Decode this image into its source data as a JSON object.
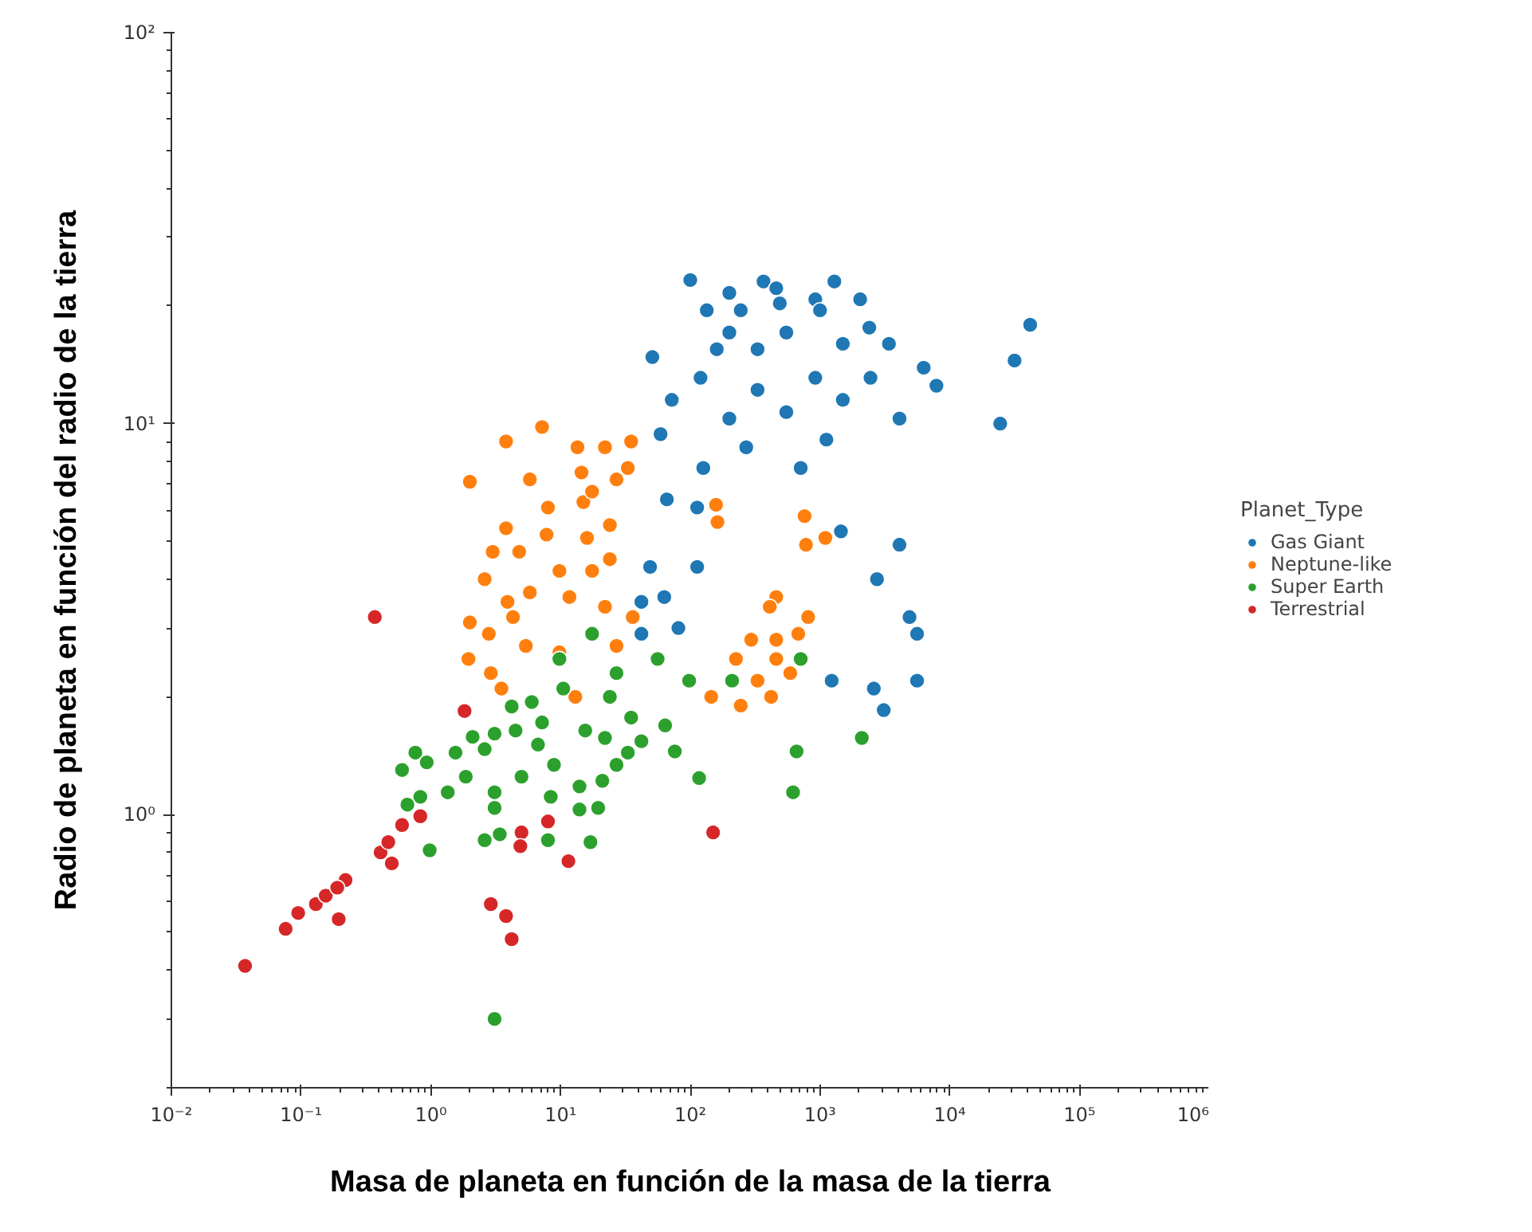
{
  "chart_data": {
    "type": "scatter",
    "xlabel": "Masa de planeta en función de la masa de la tierra",
    "ylabel": "Radio de planeta en función del radio de la tierra",
    "legend_title": "Planet_Type",
    "legend": "right",
    "marker": "circle",
    "log": "xy",
    "xlim": [
      0.01,
      1000000
    ],
    "ylim": [
      0.2,
      100
    ],
    "xticks": [
      {
        "value": 0.01,
        "label": "10⁻²"
      },
      {
        "value": 0.1,
        "label": "10⁻¹"
      },
      {
        "value": 1,
        "label": "10⁰"
      },
      {
        "value": 10,
        "label": "10¹"
      },
      {
        "value": 100,
        "label": "10²"
      },
      {
        "value": 1000,
        "label": "10³"
      },
      {
        "value": 10000,
        "label": "10⁴"
      },
      {
        "value": 100000,
        "label": "10⁵"
      },
      {
        "value": 1000000,
        "label": "10⁶"
      }
    ],
    "yticks": [
      {
        "value": 1,
        "label": "10⁰"
      },
      {
        "value": 10,
        "label": "10¹"
      },
      {
        "value": 100,
        "label": "10²"
      }
    ],
    "series": [
      {
        "name": "Gas Giant",
        "color": "#1f77b4",
        "x": [
          100,
          367,
          1290,
          2040,
          200,
          920,
          134,
          490,
          2400,
          41700,
          31600,
          51,
          6300,
          7900,
          4100,
          24500,
          1120,
          270,
          126,
          710,
          66,
          113,
          1450,
          4100,
          49,
          113,
          2750,
          42,
          63,
          4900,
          5600,
          81,
          42,
          1230,
          2600,
          5600,
          3100,
          200,
          330,
          550,
          120,
          330,
          920,
          1500,
          72,
          200,
          550,
          59,
          2450,
          460,
          245,
          160,
          1500,
          3400,
          1000
        ],
        "values": [
          23.3,
          23.1,
          23.1,
          20.8,
          21.6,
          20.8,
          19.5,
          20.3,
          17.6,
          17.9,
          14.5,
          14.8,
          13.9,
          12.5,
          10.3,
          10.0,
          9.1,
          8.7,
          7.7,
          7.7,
          6.4,
          6.1,
          5.3,
          4.9,
          4.3,
          4.3,
          4.0,
          3.5,
          3.6,
          3.2,
          2.9,
          3.0,
          2.9,
          2.2,
          2.1,
          2.2,
          1.85,
          17.1,
          15.5,
          17.1,
          13.1,
          12.2,
          13.1,
          11.5,
          11.5,
          10.3,
          10.7,
          9.4,
          13.1,
          22.2,
          19.5,
          15.5,
          16.0,
          16.0,
          19.5
        ]
      },
      {
        "name": "Neptune-like",
        "color": "#ff7f0e",
        "x": [
          7.2,
          3.8,
          2.0,
          13.5,
          22,
          35,
          5.8,
          14.5,
          27,
          15,
          158,
          162,
          760,
          780,
          1100,
          3.8,
          7.8,
          3.0,
          2.6,
          4.8,
          16,
          24,
          9.8,
          24,
          5.8,
          3.9,
          11.7,
          22,
          2.0,
          2.8,
          1.95,
          2.9,
          5.4,
          9.8,
          3.5,
          13,
          27,
          36,
          460,
          410,
          810,
          295,
          460,
          680,
          225,
          460,
          330,
          590,
          145,
          245,
          420,
          8.0,
          17.5,
          33,
          17.5,
          4.3
        ],
        "values": [
          9.8,
          9.0,
          7.1,
          8.7,
          8.7,
          9.0,
          7.2,
          7.5,
          7.2,
          6.3,
          6.2,
          5.6,
          5.8,
          4.9,
          5.1,
          5.4,
          5.2,
          4.7,
          4.0,
          4.7,
          5.1,
          5.5,
          4.2,
          4.5,
          3.7,
          3.5,
          3.6,
          3.4,
          3.1,
          2.9,
          2.5,
          2.3,
          2.7,
          2.6,
          2.1,
          2.0,
          2.7,
          3.2,
          3.6,
          3.4,
          3.2,
          2.8,
          2.8,
          2.9,
          2.5,
          2.5,
          2.2,
          2.3,
          2.0,
          1.9,
          2.0,
          6.1,
          6.7,
          7.7,
          4.2,
          3.2
        ]
      },
      {
        "name": "Super Earth",
        "color": "#2ca02c",
        "x": [
          17.5,
          56,
          98,
          710,
          210,
          2100,
          660,
          620,
          117,
          76,
          9.8,
          27,
          35,
          64,
          42,
          24,
          15.5,
          22,
          33,
          27,
          21,
          19.5,
          14,
          14,
          17,
          8.0,
          2.6,
          3.4,
          8.4,
          8.9,
          6.7,
          4.5,
          3.1,
          2.1,
          1.55,
          2.6,
          1.86,
          3.1,
          3.1,
          5.0,
          1.35,
          0.83,
          0.66,
          0.6,
          0.76,
          0.93,
          0.98,
          3.1,
          6.0,
          10.5,
          4.2,
          7.2
        ],
        "values": [
          2.9,
          2.5,
          2.2,
          2.5,
          2.2,
          1.57,
          1.45,
          1.14,
          1.24,
          1.45,
          2.5,
          2.3,
          1.77,
          1.69,
          1.54,
          2.0,
          1.64,
          1.57,
          1.44,
          1.34,
          1.22,
          1.04,
          1.18,
          1.03,
          0.85,
          0.86,
          0.86,
          0.89,
          1.11,
          1.34,
          1.51,
          1.64,
          1.61,
          1.58,
          1.44,
          1.47,
          1.25,
          1.04,
          1.14,
          1.25,
          1.14,
          1.11,
          1.06,
          1.3,
          1.44,
          1.36,
          0.81,
          0.3,
          1.94,
          2.1,
          1.89,
          1.72
        ]
      },
      {
        "name": "Terrestrial",
        "color": "#d62728",
        "x": [
          0.37,
          1.82,
          8.0,
          5.0,
          4.9,
          11.5,
          150,
          2.9,
          3.8,
          4.2,
          0.037,
          0.076,
          0.095,
          0.13,
          0.155,
          0.195,
          0.22,
          0.41,
          0.5,
          0.47,
          0.6,
          0.83,
          0.19
        ],
        "values": [
          3.2,
          1.84,
          0.96,
          0.9,
          0.83,
          0.76,
          0.9,
          0.59,
          0.55,
          0.48,
          0.41,
          0.51,
          0.56,
          0.59,
          0.62,
          0.54,
          0.68,
          0.8,
          0.75,
          0.85,
          0.94,
          0.99,
          0.65
        ]
      }
    ]
  }
}
